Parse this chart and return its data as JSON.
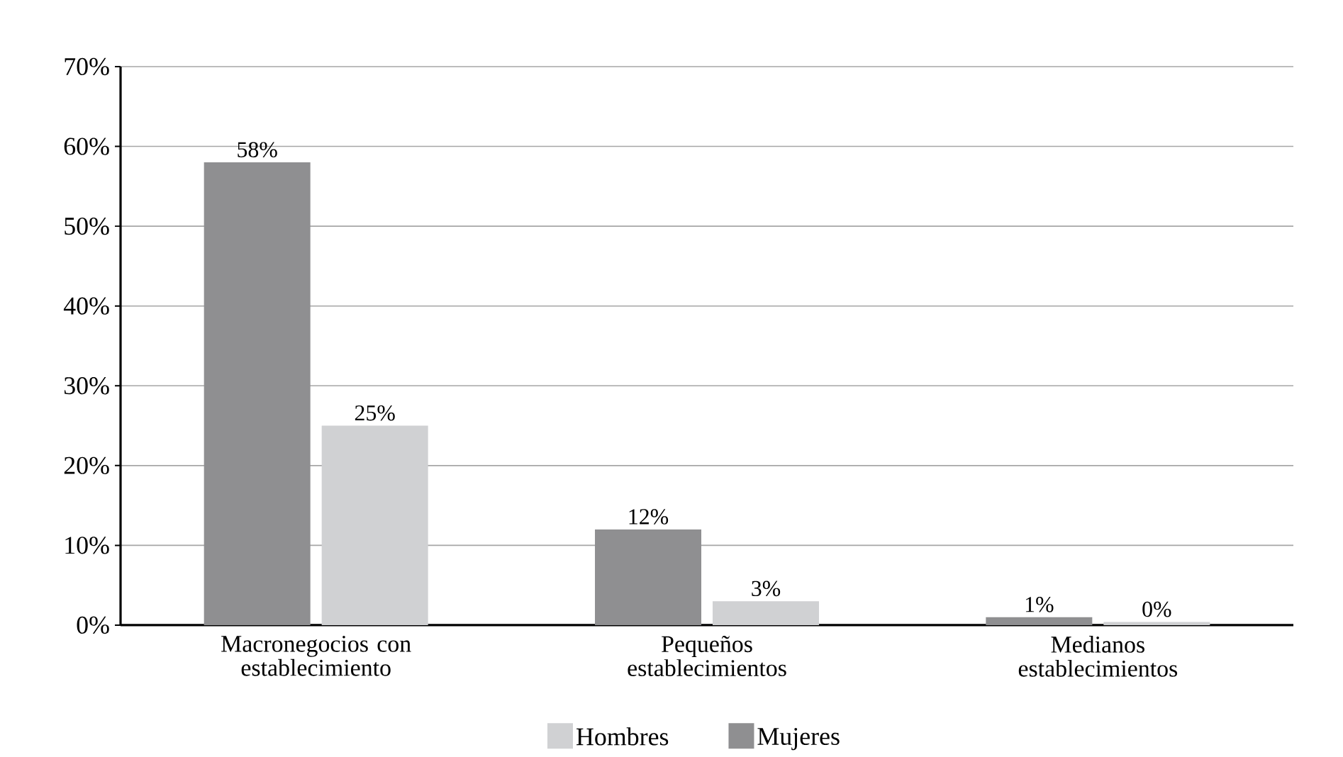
{
  "chart_data": {
    "type": "bar",
    "categories": [
      "Macronegocios con establecimiento",
      "Pequeños establecimientos",
      "Medianos establecimientos"
    ],
    "series": [
      {
        "name": "Mujeres",
        "color": "#8f8f91",
        "values": [
          58,
          12,
          1
        ],
        "value_labels": [
          "58%",
          "12%",
          "1%"
        ]
      },
      {
        "name": "Hombres",
        "color": "#d0d1d3",
        "values": [
          25,
          3,
          0.4
        ],
        "value_labels": [
          "25%",
          "3%",
          "0%"
        ]
      }
    ],
    "ylim": [
      0,
      70
    ],
    "yticks": [
      {
        "value": 0,
        "label": "0%"
      },
      {
        "value": 10,
        "label": "10%"
      },
      {
        "value": 20,
        "label": "20%"
      },
      {
        "value": 30,
        "label": "30%"
      },
      {
        "value": 40,
        "label": "40%"
      },
      {
        "value": 50,
        "label": "50%"
      },
      {
        "value": 60,
        "label": "60%"
      },
      {
        "value": 70,
        "label": "70%"
      }
    ],
    "grid": "y",
    "legend": "bottom"
  }
}
